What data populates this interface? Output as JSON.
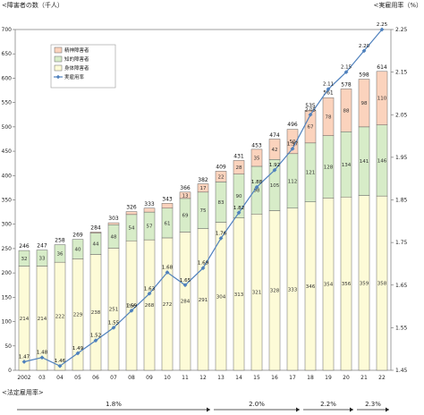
{
  "chart_data": {
    "type": "bar",
    "stacked": true,
    "left_axis_label": "<障害者の数（千人）",
    "right_axis_label": "<実雇用率（%）",
    "bottom_label": "<法定雇用率>",
    "categories": [
      "2002",
      "03",
      "04",
      "05",
      "06",
      "07",
      "08",
      "09",
      "10",
      "11",
      "12",
      "13",
      "14",
      "15",
      "16",
      "17",
      "18",
      "19",
      "20",
      "21",
      "22"
    ],
    "series": [
      {
        "name": "身体障害者",
        "color": "#fdfbd7",
        "values": [
          214,
          214,
          222,
          229,
          238,
          251,
          266,
          268,
          272,
          284,
          291,
          304,
          313,
          321,
          328,
          333,
          346,
          354,
          356,
          359,
          358
        ]
      },
      {
        "name": "知的障害者",
        "color": "#d7ecc8",
        "values": [
          32,
          33,
          36,
          40,
          44,
          48,
          54,
          57,
          61,
          69,
          75,
          83,
          90,
          98,
          105,
          112,
          121,
          128,
          134,
          141,
          146
        ]
      },
      {
        "name": "精神障害者",
        "color": "#fbd3bd",
        "values": [
          0,
          0,
          0,
          0,
          2,
          4,
          6,
          8,
          10,
          13,
          17,
          22,
          28,
          35,
          42,
          50,
          67,
          78,
          88,
          98,
          110
        ]
      }
    ],
    "totals": [
      246,
      247,
      258,
      269,
      284,
      303,
      326,
      333,
      343,
      366,
      382,
      409,
      431,
      453,
      474,
      496,
      535,
      561,
      578,
      598,
      614
    ],
    "line": {
      "name": "実雇用率",
      "color": "#4f81bd",
      "values": [
        1.47,
        1.48,
        1.46,
        1.49,
        1.52,
        1.55,
        1.59,
        1.63,
        1.68,
        1.65,
        1.69,
        1.76,
        1.82,
        1.88,
        1.92,
        1.97,
        2.05,
        2.11,
        2.15,
        2.2,
        2.25
      ]
    },
    "left_ylim": [
      0,
      700
    ],
    "left_ticks": [
      0,
      50,
      100,
      150,
      200,
      250,
      300,
      350,
      400,
      450,
      500,
      550,
      600,
      650,
      700
    ],
    "right_ylim": [
      1.45,
      2.25
    ],
    "right_ticks": [
      "1.45",
      "1.55",
      "1.65",
      "1.75",
      "1.85",
      "1.95",
      "2.05",
      "2.15",
      "2.25"
    ],
    "legend_placement": "top-left",
    "grid": false,
    "legal_rates": [
      {
        "label": "1.8%",
        "from": "2002",
        "to": "12"
      },
      {
        "label": "2.0%",
        "from": "13",
        "to": "17"
      },
      {
        "label": "2.2%",
        "from": "18",
        "to": "20"
      },
      {
        "label": "2.3%",
        "from": "21",
        "to": "22"
      }
    ]
  }
}
